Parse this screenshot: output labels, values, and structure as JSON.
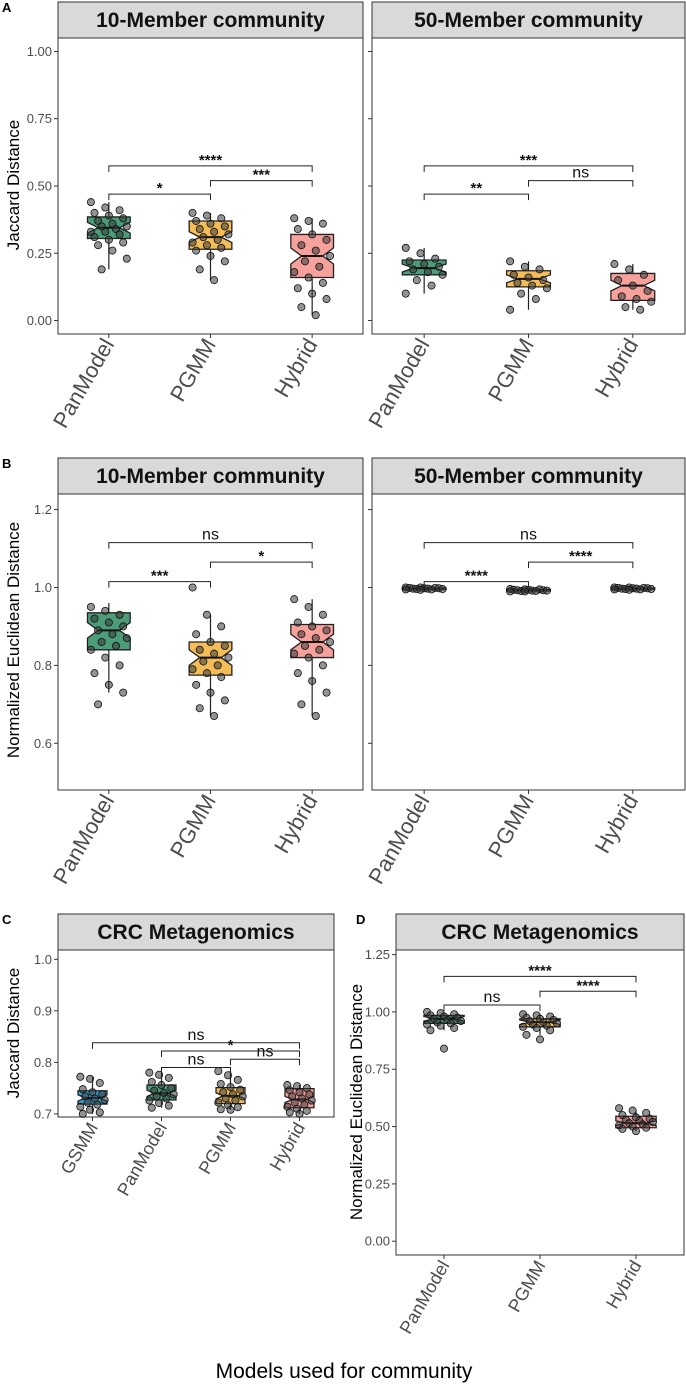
{
  "figure_xlabel": "Models used for community",
  "colors": {
    "GSMM": "#1a8fc9",
    "PanModel": "#2e8b62",
    "PGMM": "#f2b13a",
    "Hybrid": "#f4908a",
    "strip_fill": "#d9d9d9",
    "point": "#3a3a3a"
  },
  "chart_data": [
    {
      "id": "A1",
      "panel_letter": "A",
      "type": "box",
      "title": "10-Member community",
      "ylabel": "Jaccard Distance",
      "ylim": [
        -0.05,
        1.05
      ],
      "yticks": [
        0.0,
        0.25,
        0.5,
        0.75,
        1.0
      ],
      "ytick_labels": [
        "0.00",
        "0.25",
        "0.50",
        "0.75",
        "1.00"
      ],
      "categories": [
        "PanModel",
        "PGMM",
        "Hybrid"
      ],
      "boxes": [
        {
          "q1": 0.305,
          "med": 0.345,
          "q3": 0.385,
          "lo": 0.19,
          "hi": 0.44,
          "nl": 0.325,
          "nh": 0.365
        },
        {
          "q1": 0.265,
          "med": 0.31,
          "q3": 0.37,
          "lo": 0.15,
          "hi": 0.4,
          "nl": 0.29,
          "nh": 0.33
        },
        {
          "q1": 0.16,
          "med": 0.24,
          "q3": 0.32,
          "lo": 0.02,
          "hi": 0.38,
          "nl": 0.21,
          "nh": 0.27
        }
      ],
      "points": [
        [
          0.44,
          0.42,
          0.41,
          0.4,
          0.39,
          0.38,
          0.37,
          0.36,
          0.35,
          0.35,
          0.34,
          0.33,
          0.33,
          0.32,
          0.31,
          0.3,
          0.29,
          0.28,
          0.26,
          0.23,
          0.19
        ],
        [
          0.4,
          0.39,
          0.38,
          0.37,
          0.36,
          0.35,
          0.34,
          0.33,
          0.32,
          0.31,
          0.3,
          0.29,
          0.28,
          0.27,
          0.26,
          0.24,
          0.22,
          0.19,
          0.15
        ],
        [
          0.38,
          0.37,
          0.36,
          0.34,
          0.32,
          0.3,
          0.28,
          0.26,
          0.24,
          0.22,
          0.2,
          0.18,
          0.16,
          0.14,
          0.12,
          0.1,
          0.08,
          0.05,
          0.02
        ]
      ],
      "sig": [
        {
          "a": 0,
          "b": 1,
          "y": 0.47,
          "label": "*"
        },
        {
          "a": 0,
          "b": 2,
          "y": 0.575,
          "label": "****"
        },
        {
          "a": 1,
          "b": 2,
          "y": 0.52,
          "label": "***"
        }
      ]
    },
    {
      "id": "A2",
      "panel_letter": "",
      "type": "box",
      "title": "50-Member community",
      "ylabel": "",
      "ylim": [
        -0.05,
        1.05
      ],
      "yticks": [
        0.0,
        0.25,
        0.5,
        0.75,
        1.0
      ],
      "ytick_labels": [],
      "categories": [
        "PanModel",
        "PGMM",
        "Hybrid"
      ],
      "boxes": [
        {
          "q1": 0.17,
          "med": 0.195,
          "q3": 0.225,
          "lo": 0.1,
          "hi": 0.27,
          "nl": 0.18,
          "nh": 0.21
        },
        {
          "q1": 0.125,
          "med": 0.155,
          "q3": 0.185,
          "lo": 0.04,
          "hi": 0.22,
          "nl": 0.14,
          "nh": 0.17
        },
        {
          "q1": 0.075,
          "med": 0.13,
          "q3": 0.175,
          "lo": 0.04,
          "hi": 0.21,
          "nl": 0.11,
          "nh": 0.15
        }
      ],
      "points": [
        [
          0.27,
          0.25,
          0.23,
          0.22,
          0.21,
          0.2,
          0.19,
          0.18,
          0.17,
          0.15,
          0.13,
          0.1
        ],
        [
          0.22,
          0.2,
          0.19,
          0.17,
          0.16,
          0.15,
          0.14,
          0.13,
          0.12,
          0.1,
          0.08,
          0.04
        ],
        [
          0.21,
          0.19,
          0.17,
          0.15,
          0.13,
          0.11,
          0.09,
          0.08,
          0.07,
          0.05,
          0.04
        ]
      ],
      "sig": [
        {
          "a": 0,
          "b": 1,
          "y": 0.47,
          "label": "**"
        },
        {
          "a": 0,
          "b": 2,
          "y": 0.575,
          "label": "***"
        },
        {
          "a": 1,
          "b": 2,
          "y": 0.52,
          "label": "ns"
        }
      ]
    },
    {
      "id": "B1",
      "panel_letter": "B",
      "type": "box",
      "title": "10-Member community",
      "ylabel": "Normalized Euclidean Distance",
      "ylim": [
        0.48,
        1.24
      ],
      "yticks": [
        0.6,
        0.8,
        1.0,
        1.2
      ],
      "ytick_labels": [
        "0.6",
        "0.8",
        "1.0",
        "1.2"
      ],
      "categories": [
        "PanModel",
        "PGMM",
        "Hybrid"
      ],
      "boxes": [
        {
          "q1": 0.84,
          "med": 0.89,
          "q3": 0.935,
          "lo": 0.73,
          "hi": 0.96,
          "nl": 0.87,
          "nh": 0.91
        },
        {
          "q1": 0.775,
          "med": 0.82,
          "q3": 0.86,
          "lo": 0.67,
          "hi": 0.93,
          "nl": 0.8,
          "nh": 0.84
        },
        {
          "q1": 0.82,
          "med": 0.86,
          "q3": 0.905,
          "lo": 0.67,
          "hi": 0.97,
          "nl": 0.84,
          "nh": 0.88
        }
      ],
      "points": [
        [
          0.95,
          0.94,
          0.93,
          0.92,
          0.91,
          0.9,
          0.89,
          0.88,
          0.87,
          0.86,
          0.85,
          0.84,
          0.82,
          0.8,
          0.78,
          0.75,
          0.73,
          0.7
        ],
        [
          1.0,
          0.93,
          0.9,
          0.88,
          0.86,
          0.85,
          0.84,
          0.83,
          0.82,
          0.81,
          0.8,
          0.79,
          0.78,
          0.77,
          0.75,
          0.73,
          0.71,
          0.69,
          0.67
        ],
        [
          0.97,
          0.95,
          0.93,
          0.91,
          0.9,
          0.89,
          0.88,
          0.87,
          0.86,
          0.85,
          0.84,
          0.83,
          0.82,
          0.8,
          0.78,
          0.76,
          0.73,
          0.7,
          0.67
        ]
      ],
      "sig": [
        {
          "a": 0,
          "b": 1,
          "y": 1.015,
          "label": "***"
        },
        {
          "a": 0,
          "b": 2,
          "y": 1.115,
          "label": "ns"
        },
        {
          "a": 1,
          "b": 2,
          "y": 1.065,
          "label": "*"
        }
      ]
    },
    {
      "id": "B2",
      "panel_letter": "",
      "type": "box",
      "title": "50-Member community",
      "ylabel": "",
      "ylim": [
        0.48,
        1.24
      ],
      "yticks": [
        0.6,
        0.8,
        1.0,
        1.2
      ],
      "ytick_labels": [],
      "categories": [
        "PanModel",
        "PGMM",
        "Hybrid"
      ],
      "boxes": [
        {
          "q1": 0.995,
          "med": 0.997,
          "q3": 0.999,
          "lo": 0.994,
          "hi": 1.0,
          "nl": 0.996,
          "nh": 0.998
        },
        {
          "q1": 0.991,
          "med": 0.993,
          "q3": 0.995,
          "lo": 0.99,
          "hi": 0.996,
          "nl": 0.992,
          "nh": 0.994
        },
        {
          "q1": 0.995,
          "med": 0.997,
          "q3": 0.999,
          "lo": 0.994,
          "hi": 1.0,
          "nl": 0.996,
          "nh": 0.998
        }
      ],
      "points": [
        [
          1.0,
          1.0,
          0.999,
          0.999,
          0.998,
          0.998,
          0.997,
          0.997,
          0.996,
          0.996,
          0.995,
          0.995,
          0.994
        ],
        [
          0.996,
          0.995,
          0.995,
          0.994,
          0.994,
          0.993,
          0.993,
          0.992,
          0.992,
          0.991,
          0.991,
          0.99,
          0.99
        ],
        [
          1.0,
          1.0,
          0.999,
          0.999,
          0.998,
          0.998,
          0.997,
          0.997,
          0.996,
          0.996,
          0.995,
          0.995,
          0.994
        ]
      ],
      "sig": [
        {
          "a": 0,
          "b": 1,
          "y": 1.015,
          "label": "****"
        },
        {
          "a": 0,
          "b": 2,
          "y": 1.115,
          "label": "ns"
        },
        {
          "a": 1,
          "b": 2,
          "y": 1.065,
          "label": "****"
        }
      ]
    },
    {
      "id": "C",
      "panel_letter": "C",
      "type": "box",
      "title": "CRC Metagenomics",
      "ylabel": "Jaccard Distance",
      "ylim": [
        0.694,
        1.018
      ],
      "yticks": [
        0.7,
        0.8,
        0.9,
        1.0
      ],
      "ytick_labels": [
        "0.7",
        "0.8",
        "0.9",
        "1.0"
      ],
      "categories": [
        "GSMM",
        "PanModel",
        "PGMM",
        "Hybrid"
      ],
      "boxes": [
        {
          "q1": 0.719,
          "med": 0.731,
          "q3": 0.745,
          "lo": 0.7,
          "hi": 0.772,
          "nl": 0.725,
          "nh": 0.737
        },
        {
          "q1": 0.727,
          "med": 0.74,
          "q3": 0.756,
          "lo": 0.712,
          "hi": 0.78,
          "nl": 0.734,
          "nh": 0.746
        },
        {
          "q1": 0.72,
          "med": 0.735,
          "q3": 0.751,
          "lo": 0.708,
          "hi": 0.783,
          "nl": 0.729,
          "nh": 0.741
        },
        {
          "q1": 0.712,
          "med": 0.728,
          "q3": 0.749,
          "lo": 0.7,
          "hi": 0.756,
          "nl": 0.722,
          "nh": 0.734
        }
      ],
      "points": [
        [
          0.772,
          0.768,
          0.76,
          0.748,
          0.742,
          0.738,
          0.734,
          0.73,
          0.727,
          0.722,
          0.718,
          0.714,
          0.708,
          0.703,
          0.7
        ],
        [
          0.78,
          0.776,
          0.77,
          0.762,
          0.756,
          0.75,
          0.745,
          0.741,
          0.738,
          0.734,
          0.73,
          0.726,
          0.721,
          0.716,
          0.712
        ],
        [
          0.783,
          0.775,
          0.766,
          0.758,
          0.752,
          0.747,
          0.742,
          0.738,
          0.734,
          0.73,
          0.726,
          0.722,
          0.717,
          0.713,
          0.709,
          0.708
        ],
        [
          0.756,
          0.754,
          0.75,
          0.746,
          0.742,
          0.738,
          0.734,
          0.73,
          0.726,
          0.722,
          0.718,
          0.714,
          0.71,
          0.706,
          0.703,
          0.7
        ]
      ],
      "sig": [
        {
          "a": 1,
          "b": 2,
          "y": 0.79,
          "label": "ns"
        },
        {
          "a": 2,
          "b": 3,
          "y": 0.806,
          "label": "ns"
        },
        {
          "a": 1,
          "b": 3,
          "y": 0.822,
          "label": "*"
        },
        {
          "a": 0,
          "b": 3,
          "y": 0.838,
          "label": "ns"
        }
      ]
    },
    {
      "id": "D",
      "panel_letter": "D",
      "type": "box",
      "title": "CRC Metagenomics",
      "ylabel": "Normalized Euclidean Distance",
      "ylim": [
        -0.06,
        1.27
      ],
      "yticks": [
        0.0,
        0.25,
        0.5,
        0.75,
        1.0,
        1.25
      ],
      "ytick_labels": [
        "0.00",
        "0.25",
        "0.50",
        "0.75",
        "1.00",
        "1.25"
      ],
      "categories": [
        "PanModel",
        "PGMM",
        "Hybrid"
      ],
      "boxes": [
        {
          "q1": 0.95,
          "med": 0.97,
          "q3": 0.985,
          "lo": 0.92,
          "hi": 1.0,
          "nl": 0.96,
          "nh": 0.98
        },
        {
          "q1": 0.935,
          "med": 0.955,
          "q3": 0.97,
          "lo": 0.9,
          "hi": 0.99,
          "nl": 0.945,
          "nh": 0.965
        },
        {
          "q1": 0.495,
          "med": 0.515,
          "q3": 0.545,
          "lo": 0.48,
          "hi": 0.57,
          "nl": 0.505,
          "nh": 0.525
        }
      ],
      "points": [
        [
          1.0,
          0.995,
          0.99,
          0.985,
          0.98,
          0.975,
          0.97,
          0.965,
          0.96,
          0.955,
          0.95,
          0.945,
          0.94,
          0.93,
          0.92,
          0.84
        ],
        [
          0.99,
          0.985,
          0.98,
          0.975,
          0.97,
          0.965,
          0.96,
          0.955,
          0.95,
          0.945,
          0.94,
          0.935,
          0.93,
          0.92,
          0.9,
          0.88
        ],
        [
          0.58,
          0.57,
          0.56,
          0.55,
          0.54,
          0.535,
          0.53,
          0.525,
          0.52,
          0.515,
          0.51,
          0.505,
          0.5,
          0.495,
          0.49,
          0.48
        ]
      ],
      "sig": [
        {
          "a": 0,
          "b": 1,
          "y": 1.03,
          "label": "ns"
        },
        {
          "a": 1,
          "b": 2,
          "y": 1.09,
          "label": "****"
        },
        {
          "a": 0,
          "b": 2,
          "y": 1.155,
          "label": "****"
        }
      ]
    }
  ]
}
